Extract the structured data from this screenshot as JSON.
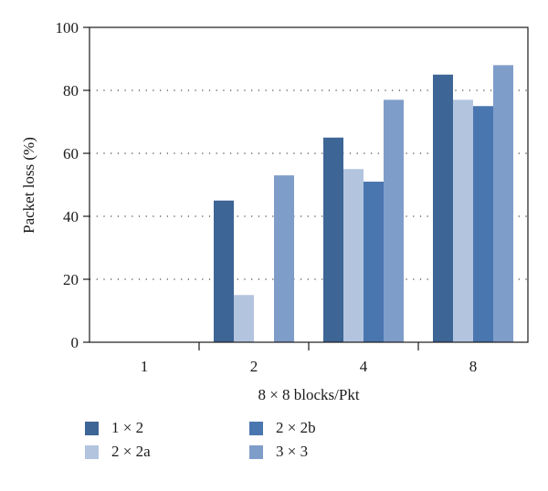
{
  "chart_data": {
    "type": "bar",
    "categories": [
      "1",
      "2",
      "4",
      "8"
    ],
    "series": [
      {
        "name": "1 × 2",
        "values": [
          0,
          45,
          65,
          85
        ],
        "color": "#3d6596"
      },
      {
        "name": "2 × 2a",
        "values": [
          0,
          15,
          55,
          77
        ],
        "color": "#b3c4df"
      },
      {
        "name": "2 × 2b",
        "values": [
          0,
          0,
          51,
          75
        ],
        "color": "#4a76b0"
      },
      {
        "name": "3 × 3",
        "values": [
          0,
          53,
          77,
          88
        ],
        "color": "#7f9dc9"
      }
    ],
    "xlabel": "8 × 8 blocks/Pkt",
    "ylabel": "Packet loss (%)",
    "ylim": [
      0,
      100
    ],
    "yticks": [
      0,
      20,
      40,
      60,
      80,
      100
    ],
    "grid": "horizontal dotted",
    "legend_position": "bottom"
  }
}
